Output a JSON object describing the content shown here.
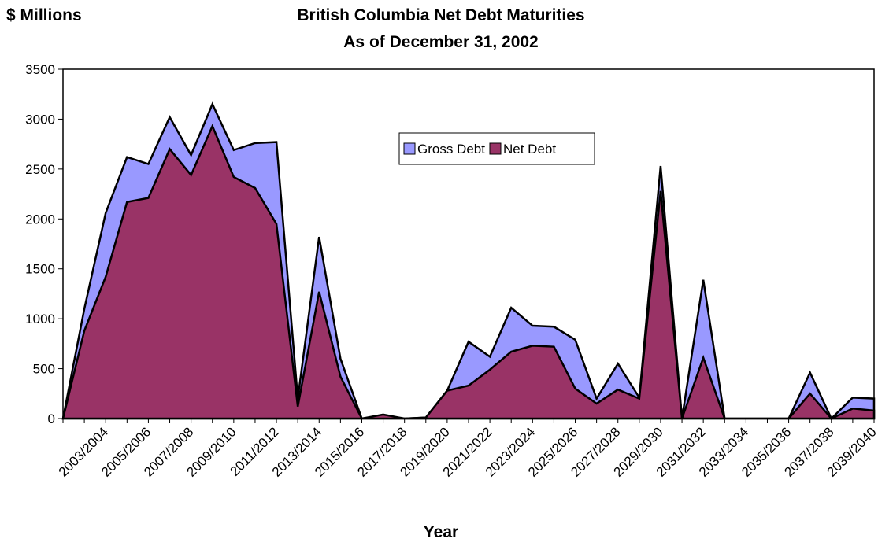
{
  "chart_data": {
    "type": "area",
    "title": "British Columbia Net Debt Maturities",
    "subtitle": "As of December 31, 2002",
    "y_label": "$ Millions",
    "x_label": "Year",
    "categories": [
      null,
      null,
      "2003/2004",
      null,
      "2005/2006",
      null,
      "2007/2008",
      null,
      "2009/2010",
      null,
      "2011/2012",
      null,
      "2013/2014",
      null,
      "2015/2016",
      null,
      "2017/2018",
      null,
      "2019/2020",
      null,
      "2021/2022",
      null,
      "2023/2024",
      null,
      "2025/2026",
      null,
      "2027/2028",
      null,
      "2029/2030",
      null,
      "2031/2032",
      null,
      "2033/2034",
      null,
      "2035/2036",
      null,
      "2037/2038",
      null,
      "2039/2040"
    ],
    "series": [
      {
        "name": "Gross Debt",
        "color": "#9999ff",
        "values": [
          0,
          1100,
          2060,
          2620,
          2550,
          3020,
          2640,
          3150,
          2690,
          2760,
          2770,
          200,
          1820,
          600,
          0,
          30,
          0,
          10,
          280,
          770,
          620,
          1110,
          930,
          920,
          790,
          200,
          550,
          210,
          2530,
          0,
          1390,
          0,
          0,
          0,
          0,
          460,
          0,
          210,
          200
        ]
      },
      {
        "name": "Net Debt",
        "color": "#993366",
        "values": [
          0,
          880,
          1420,
          2170,
          2210,
          2700,
          2440,
          2930,
          2420,
          2310,
          1950,
          120,
          1270,
          420,
          0,
          40,
          0,
          10,
          280,
          330,
          490,
          670,
          730,
          720,
          300,
          150,
          290,
          200,
          2280,
          0,
          610,
          0,
          0,
          0,
          0,
          250,
          0,
          100,
          80
        ]
      }
    ],
    "ylim": [
      0,
      3500
    ],
    "yticks": [
      0,
      500,
      1000,
      1500,
      2000,
      2500,
      3000,
      3500
    ],
    "grid": false
  }
}
